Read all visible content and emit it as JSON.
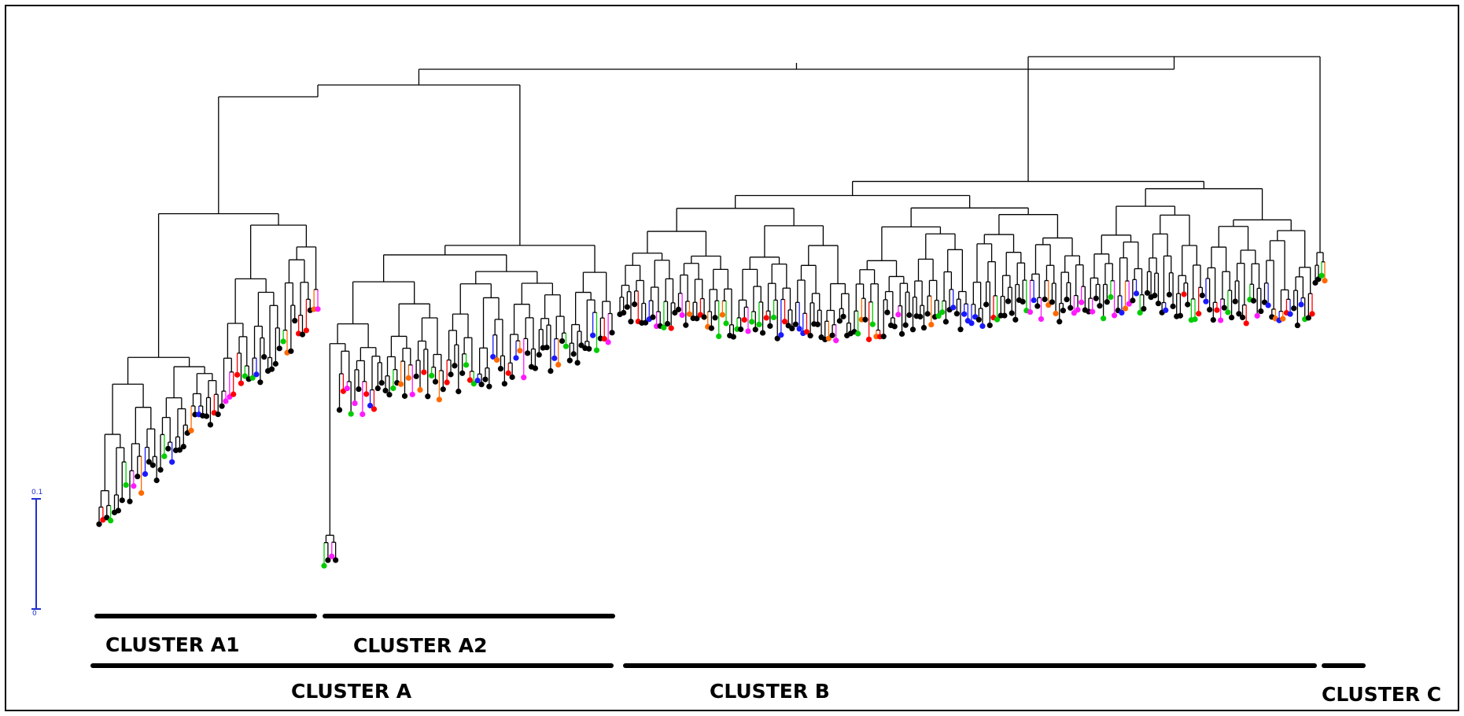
{
  "scale_bar": {
    "top_label": "0.1",
    "bottom_label": "0"
  },
  "clusters": {
    "a1": "CLUSTER A1",
    "a2": "CLUSTER A2",
    "a": "CLUSTER A",
    "b": "CLUSTER B",
    "c": "CLUSTER C"
  },
  "colors": {
    "branch": "#000000",
    "scale": "#2030d0",
    "tips": [
      "#000000",
      "#1a1aff",
      "#ff1aff",
      "#ff6a00",
      "#ff0000",
      "#00cc00",
      "#e0e000",
      "#00cccc",
      "#ffb0b0"
    ]
  }
}
